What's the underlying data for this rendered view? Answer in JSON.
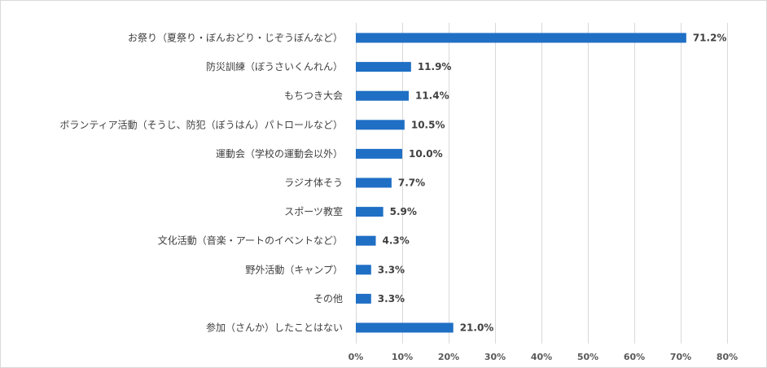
{
  "chart_data": {
    "type": "bar",
    "orientation": "horizontal",
    "categories": [
      "お祭り（夏祭り・ぼんおどり・じぞうぼんなど）",
      "防災訓練（ぼうさいくんれん）",
      "もちつき大会",
      "ボランティア活動（そうじ、防犯（ぼうはん）パトロールなど）",
      "運動会（学校の運動会以外）",
      "ラジオ体そう",
      "スポーツ教室",
      "文化活動（音楽・アートのイベントなど）",
      "野外活動（キャンプ）",
      "その他",
      "参加（さんか）したことはない"
    ],
    "values": [
      71.2,
      11.9,
      11.4,
      10.5,
      10.0,
      7.7,
      5.9,
      4.3,
      3.3,
      3.3,
      21.0
    ],
    "value_labels": [
      "71.2%",
      "11.9%",
      "11.4%",
      "10.5%",
      "10.0%",
      "7.7%",
      "5.9%",
      "4.3%",
      "3.3%",
      "3.3%",
      "21.0%"
    ],
    "xlim": [
      0,
      80
    ],
    "x_ticks": [
      0,
      10,
      20,
      30,
      40,
      50,
      60,
      70,
      80
    ],
    "x_tick_labels": [
      "0%",
      "10%",
      "20%",
      "30%",
      "40%",
      "50%",
      "60%",
      "70%",
      "80%"
    ],
    "title": "",
    "xlabel": "",
    "ylabel": "",
    "grid": true,
    "legend": "none",
    "colors": {
      "bar": "#1f6fc5",
      "grid": "#d9d9d9",
      "text": "#404040",
      "tick_text": "#595959",
      "border": "#d9d9d9"
    }
  }
}
